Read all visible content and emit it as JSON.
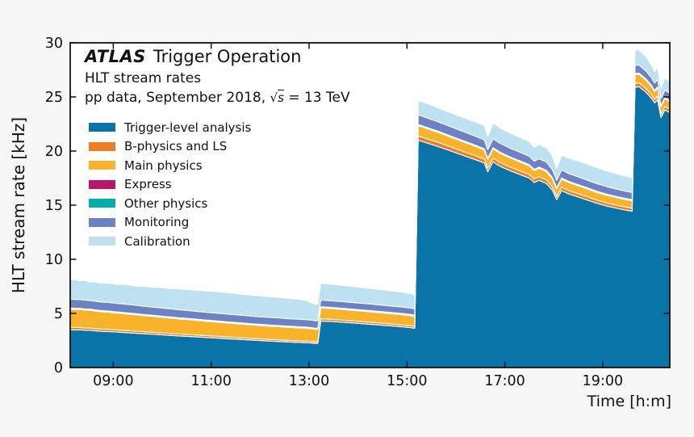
{
  "header": {
    "title_emph": "ATLAS",
    "title_rest": "Trigger Operation",
    "subtitle1": "HLT stream rates",
    "subtitle2_prefix": "pp data, September 2018, ",
    "sqrt_sym": "√",
    "sqrt_var": "s",
    "subtitle2_suffix": " = 13 TeV"
  },
  "axes": {
    "xlabel": "Time [h:m]",
    "ylabel": "HLT stream rate [kHz]",
    "x_tick_hours": [
      9,
      11,
      13,
      15,
      17,
      19
    ],
    "x_tick_labels": [
      "09:00",
      "11:00",
      "13:00",
      "15:00",
      "17:00",
      "19:00"
    ],
    "y_ticks": [
      0,
      5,
      10,
      15,
      20,
      25,
      30
    ]
  },
  "colors": {
    "background": "#f6f6f6",
    "plot_background": "#ffffff",
    "spine": "#111111",
    "separator": "#ffffff",
    "text": "#111111"
  },
  "chart_data": {
    "type": "area",
    "stacked": true,
    "title": "ATLAS Trigger Operation",
    "subtitle": "HLT stream rates",
    "conditions": "pp data, September 2018, √s = 13 TeV",
    "xlabel": "Time [h:m]",
    "ylabel": "HLT stream rate [kHz]",
    "legend_position": "upper left",
    "grid": false,
    "ylim": [
      0,
      30
    ],
    "xlim_hours": [
      8.12,
      20.37
    ],
    "x_hours": [
      8.12,
      8.22,
      8.32,
      8.42,
      8.52,
      8.62,
      8.75,
      8.9,
      9.05,
      9.2,
      9.4,
      9.6,
      9.85,
      10.1,
      10.35,
      10.6,
      10.85,
      11.1,
      11.35,
      11.6,
      11.85,
      12.1,
      12.35,
      12.6,
      12.8,
      12.95,
      13.05,
      13.13,
      13.18,
      13.24,
      13.45,
      13.7,
      14.0,
      14.3,
      14.6,
      14.9,
      15.08,
      15.16,
      15.23,
      15.4,
      15.65,
      15.9,
      16.15,
      16.4,
      16.58,
      16.65,
      16.76,
      16.9,
      17.1,
      17.3,
      17.5,
      17.6,
      17.7,
      17.85,
      17.97,
      18.06,
      18.16,
      18.3,
      18.5,
      18.7,
      18.9,
      19.1,
      19.3,
      19.5,
      19.6,
      19.66,
      19.74,
      19.88,
      20.0,
      20.06,
      20.12,
      20.19,
      20.27,
      20.37
    ],
    "series": [
      {
        "name": "Trigger-level analysis",
        "color": "#0a73a7",
        "values": [
          3.5,
          3.47,
          3.49,
          3.43,
          3.45,
          3.39,
          3.35,
          3.32,
          3.28,
          3.24,
          3.19,
          3.13,
          3.06,
          2.99,
          2.92,
          2.86,
          2.79,
          2.73,
          2.66,
          2.6,
          2.53,
          2.47,
          2.41,
          2.36,
          2.32,
          2.29,
          2.26,
          2.22,
          2.24,
          4.3,
          4.26,
          4.18,
          4.08,
          3.98,
          3.87,
          3.76,
          3.68,
          3.62,
          21.0,
          20.75,
          20.4,
          20.0,
          19.6,
          19.2,
          18.9,
          18.1,
          19.0,
          18.6,
          18.2,
          17.85,
          17.5,
          17.1,
          17.3,
          17.0,
          16.4,
          15.5,
          16.35,
          16.05,
          15.75,
          15.45,
          15.15,
          14.9,
          14.7,
          14.52,
          14.45,
          25.9,
          25.95,
          25.45,
          24.85,
          24.45,
          24.75,
          23.1,
          23.8,
          23.55
        ]
      },
      {
        "name": "B-physics and LS",
        "color": "#ee7d23",
        "values": [
          0.22,
          0.22,
          0.22,
          0.22,
          0.21,
          0.21,
          0.21,
          0.21,
          0.2,
          0.2,
          0.2,
          0.19,
          0.19,
          0.18,
          0.18,
          0.18,
          0.17,
          0.17,
          0.17,
          0.16,
          0.16,
          0.16,
          0.16,
          0.15,
          0.15,
          0.15,
          0.15,
          0.15,
          0.15,
          0.2,
          0.2,
          0.2,
          0.19,
          0.19,
          0.19,
          0.18,
          0.18,
          0.18,
          0.4,
          0.39,
          0.38,
          0.37,
          0.36,
          0.36,
          0.35,
          0.33,
          0.35,
          0.35,
          0.34,
          0.33,
          0.33,
          0.32,
          0.32,
          0.32,
          0.31,
          0.3,
          0.31,
          0.31,
          0.3,
          0.3,
          0.29,
          0.29,
          0.28,
          0.28,
          0.28,
          0.35,
          0.35,
          0.34,
          0.33,
          0.32,
          0.33,
          0.31,
          0.32,
          0.32
        ]
      },
      {
        "name": "Main physics",
        "color": "#f9b32a",
        "values": [
          1.68,
          1.67,
          1.66,
          1.65,
          1.63,
          1.62,
          1.6,
          1.58,
          1.56,
          1.54,
          1.51,
          1.48,
          1.45,
          1.42,
          1.39,
          1.36,
          1.33,
          1.3,
          1.28,
          1.26,
          1.24,
          1.22,
          1.21,
          1.2,
          1.19,
          1.18,
          1.17,
          1.15,
          1.16,
          1.0,
          0.99,
          0.98,
          0.97,
          0.96,
          0.95,
          0.94,
          0.93,
          0.92,
          0.95,
          0.94,
          0.92,
          0.9,
          0.89,
          0.87,
          0.86,
          0.81,
          0.86,
          0.85,
          0.83,
          0.82,
          0.8,
          0.78,
          0.79,
          0.78,
          0.75,
          0.7,
          0.75,
          0.74,
          0.73,
          0.72,
          0.71,
          0.7,
          0.69,
          0.68,
          0.68,
          0.8,
          0.8,
          0.78,
          0.75,
          0.72,
          0.74,
          0.69,
          0.72,
          0.71
        ]
      },
      {
        "name": "Express",
        "color": "#b4176c",
        "values": [
          0.05,
          0.05,
          0.05,
          0.05,
          0.05,
          0.05,
          0.05,
          0.05,
          0.05,
          0.05,
          0.05,
          0.05,
          0.05,
          0.05,
          0.05,
          0.05,
          0.05,
          0.05,
          0.05,
          0.05,
          0.05,
          0.05,
          0.05,
          0.05,
          0.05,
          0.05,
          0.05,
          0.05,
          0.05,
          0.05,
          0.05,
          0.05,
          0.05,
          0.05,
          0.05,
          0.05,
          0.05,
          0.05,
          0.05,
          0.05,
          0.05,
          0.05,
          0.05,
          0.05,
          0.05,
          0.05,
          0.05,
          0.05,
          0.05,
          0.05,
          0.05,
          0.05,
          0.05,
          0.05,
          0.05,
          0.05,
          0.05,
          0.05,
          0.05,
          0.05,
          0.05,
          0.05,
          0.05,
          0.05,
          0.05,
          0.05,
          0.05,
          0.05,
          0.05,
          0.05,
          0.05,
          0.05,
          0.05,
          0.05
        ]
      },
      {
        "name": "Other physics",
        "color": "#00b0a7",
        "values": [
          0.06,
          0.06,
          0.06,
          0.06,
          0.06,
          0.06,
          0.06,
          0.06,
          0.06,
          0.06,
          0.06,
          0.06,
          0.06,
          0.06,
          0.06,
          0.06,
          0.06,
          0.06,
          0.06,
          0.06,
          0.06,
          0.06,
          0.06,
          0.06,
          0.06,
          0.06,
          0.06,
          0.06,
          0.06,
          0.06,
          0.06,
          0.06,
          0.06,
          0.06,
          0.06,
          0.06,
          0.06,
          0.06,
          0.06,
          0.06,
          0.06,
          0.06,
          0.06,
          0.06,
          0.06,
          0.06,
          0.06,
          0.06,
          0.06,
          0.06,
          0.06,
          0.06,
          0.06,
          0.06,
          0.06,
          0.06,
          0.06,
          0.06,
          0.06,
          0.06,
          0.06,
          0.06,
          0.06,
          0.06,
          0.06,
          0.06,
          0.06,
          0.06,
          0.06,
          0.06,
          0.06,
          0.06,
          0.06,
          0.06
        ]
      },
      {
        "name": "Monitoring",
        "color": "#6d82c4",
        "values": [
          0.82,
          0.82,
          0.81,
          0.82,
          0.8,
          0.81,
          0.79,
          0.8,
          0.78,
          0.79,
          0.77,
          0.76,
          0.75,
          0.75,
          0.74,
          0.73,
          0.73,
          0.72,
          0.71,
          0.71,
          0.7,
          0.7,
          0.7,
          0.69,
          0.69,
          0.69,
          0.7,
          0.68,
          0.69,
          0.62,
          0.62,
          0.61,
          0.61,
          0.61,
          0.6,
          0.6,
          0.6,
          0.59,
          0.9,
          0.89,
          0.87,
          0.86,
          0.85,
          0.83,
          0.82,
          0.77,
          0.82,
          0.81,
          0.8,
          0.79,
          0.78,
          0.76,
          0.77,
          0.76,
          0.73,
          0.68,
          0.74,
          0.73,
          0.72,
          0.71,
          0.7,
          0.69,
          0.68,
          0.67,
          0.66,
          0.75,
          0.75,
          0.73,
          0.7,
          0.68,
          0.7,
          0.65,
          0.68,
          0.67
        ]
      },
      {
        "name": "Calibration",
        "color": "#bde1f1",
        "values": [
          1.75,
          1.85,
          1.72,
          1.82,
          1.7,
          1.78,
          1.73,
          1.8,
          1.75,
          1.82,
          1.78,
          1.82,
          1.85,
          1.88,
          1.92,
          1.95,
          1.97,
          1.99,
          1.97,
          1.95,
          1.93,
          1.92,
          1.9,
          1.88,
          1.85,
          1.75,
          1.6,
          1.5,
          1.55,
          1.55,
          1.53,
          1.5,
          1.47,
          1.44,
          1.41,
          1.37,
          1.33,
          1.28,
          1.33,
          1.32,
          1.3,
          1.29,
          1.3,
          1.32,
          1.35,
          1.22,
          1.45,
          1.42,
          1.4,
          1.38,
          1.36,
          1.28,
          1.33,
          1.35,
          1.25,
          1.1,
          1.35,
          1.42,
          1.46,
          1.48,
          1.48,
          1.46,
          1.43,
          1.4,
          1.38,
          1.42,
          1.4,
          1.32,
          1.18,
          1.05,
          1.16,
          0.95,
          1.12,
          1.08
        ]
      }
    ]
  }
}
